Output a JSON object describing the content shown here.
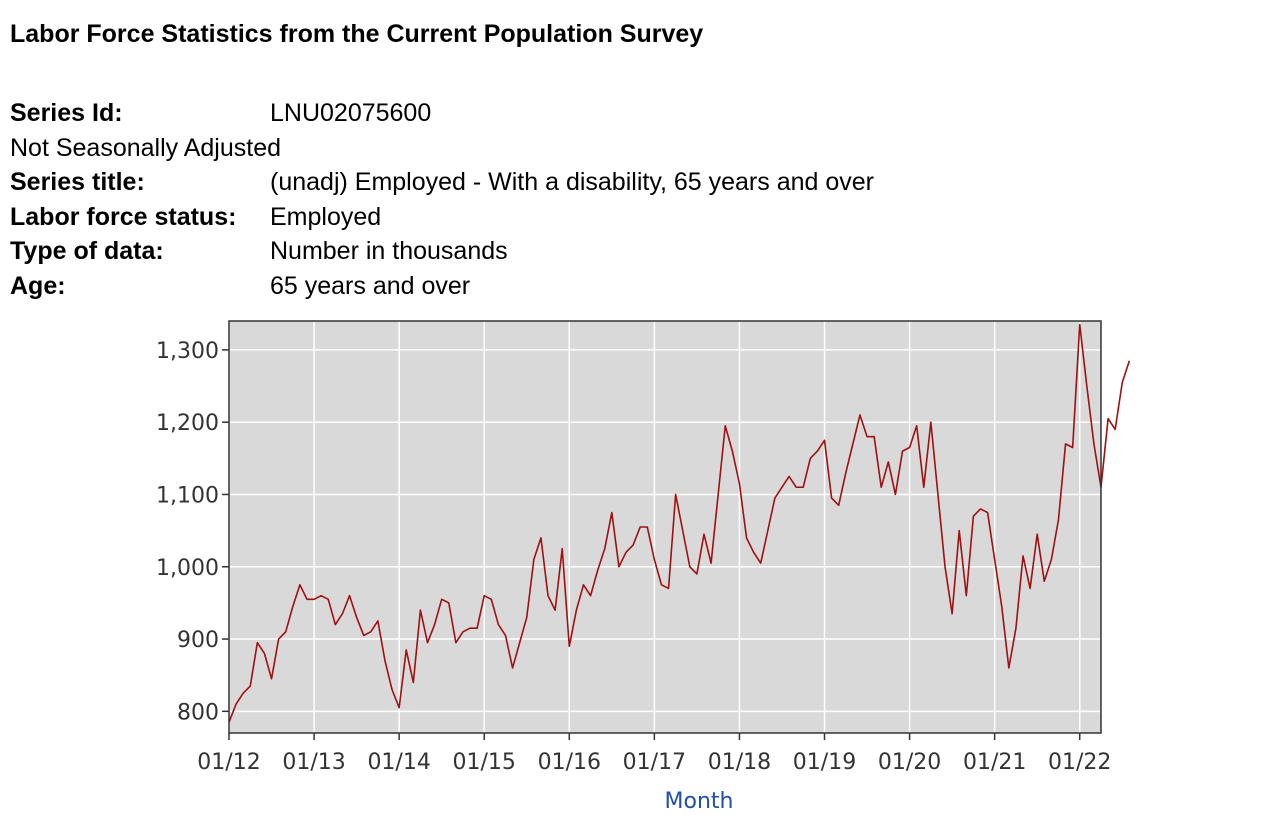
{
  "header": {
    "title": "Labor Force Statistics from the Current Population Survey"
  },
  "meta": {
    "series_id_label": "Series Id:",
    "series_id": "LNU02075600",
    "adjustment": "Not Seasonally Adjusted",
    "series_title_label": "Series title:",
    "series_title": "(unadj) Employed - With a disability, 65 years and over",
    "labor_force_status_label": "Labor force status:",
    "labor_force_status": "Employed",
    "type_of_data_label": "Type of data:",
    "type_of_data": "Number in thousands",
    "age_label": "Age:",
    "age": "65 years and over"
  },
  "colors": {
    "line": "#a01010",
    "plot_bg": "#d9d9d9",
    "grid": "#ffffff",
    "axis_label": "#1f4fa8"
  },
  "chart_data": {
    "type": "line",
    "title": "",
    "xlabel": "Month",
    "ylabel": "",
    "ylim": [
      770,
      1340
    ],
    "yticks": [
      800,
      900,
      1000,
      1100,
      1200,
      1300
    ],
    "ytick_labels": [
      "800",
      "900",
      "1,000",
      "1,100",
      "1,200",
      "1,300"
    ],
    "xlim": [
      0,
      123
    ],
    "xticks": [
      0,
      12,
      24,
      36,
      48,
      60,
      72,
      84,
      96,
      108,
      120
    ],
    "xtick_labels": [
      "01/12",
      "01/13",
      "01/14",
      "01/15",
      "01/16",
      "01/17",
      "01/18",
      "01/19",
      "01/20",
      "01/21",
      "01/22"
    ],
    "grid": true,
    "series": [
      {
        "name": "(unadj) Employed - With a disability, 65 years and over",
        "start": "2012-01",
        "values": [
          785,
          810,
          825,
          835,
          895,
          880,
          845,
          900,
          910,
          945,
          975,
          955,
          955,
          960,
          955,
          920,
          935,
          960,
          930,
          905,
          910,
          925,
          870,
          830,
          805,
          885,
          840,
          940,
          895,
          920,
          955,
          950,
          895,
          910,
          915,
          915,
          960,
          955,
          920,
          905,
          860,
          895,
          930,
          1010,
          1040,
          960,
          940,
          1025,
          890,
          940,
          975,
          960,
          995,
          1025,
          1075,
          1000,
          1020,
          1030,
          1055,
          1055,
          1010,
          975,
          970,
          1100,
          1050,
          1000,
          990,
          1045,
          1005,
          1100,
          1195,
          1160,
          1115,
          1040,
          1020,
          1005,
          1050,
          1095,
          1110,
          1125,
          1110,
          1110,
          1150,
          1160,
          1175,
          1095,
          1085,
          1130,
          1170,
          1210,
          1180,
          1180,
          1110,
          1145,
          1100,
          1160,
          1165,
          1195,
          1110,
          1200,
          1100,
          1000,
          935,
          1050,
          960,
          1070,
          1080,
          1075,
          1010,
          945,
          860,
          915,
          1015,
          970,
          1045,
          980,
          1010,
          1065,
          1170,
          1165,
          1335,
          1250,
          1170,
          1110,
          1205,
          1190,
          1255,
          1285
        ]
      }
    ]
  }
}
